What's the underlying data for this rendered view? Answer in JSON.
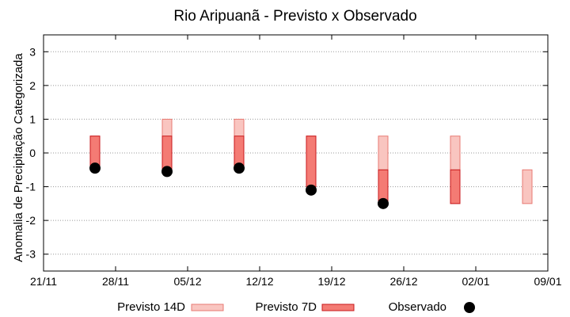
{
  "chart_data": {
    "type": "bar",
    "title": "Rio Aripuanã - Previsto x Observado",
    "ylabel": "Anomalia de Precipitação Categorizada",
    "xlabel": "",
    "ylim": [
      -3.5,
      3.5
    ],
    "y_ticks": [
      -3,
      -2,
      -1,
      0,
      1,
      2,
      3
    ],
    "x_ticks": [
      "21/11",
      "28/11",
      "05/12",
      "12/12",
      "19/12",
      "26/12",
      "02/01",
      "09/01"
    ],
    "grid": true,
    "legend_position": "bottom",
    "colors": {
      "forecast14_fill": "#f9c5c0",
      "forecast14_stroke": "#e87a73",
      "forecast7_fill": "#f47b74",
      "forecast7_stroke": "#c8191c",
      "observed": "#000000",
      "grid": "#999999"
    },
    "legend": {
      "forecast14": "Previsto 14D",
      "forecast7": "Previsto 7D",
      "observed": "Observado"
    },
    "series": [
      {
        "name": "Previsto 14D",
        "kind": "range",
        "ranges": [
          {
            "x": "26/11",
            "low": -0.5,
            "high": 0.5
          },
          {
            "x": "03/12",
            "low": -0.5,
            "high": 1.0
          },
          {
            "x": "10/12",
            "low": -0.5,
            "high": 1.0
          },
          {
            "x": "17/12",
            "low": -1.0,
            "high": 0.5
          },
          {
            "x": "24/12",
            "low": -1.5,
            "high": 0.5
          },
          {
            "x": "31/12",
            "low": -1.5,
            "high": 0.5
          },
          {
            "x": "07/01",
            "low": -1.5,
            "high": -0.5
          }
        ]
      },
      {
        "name": "Previsto 7D",
        "kind": "range",
        "ranges": [
          {
            "x": "26/11",
            "low": -0.5,
            "high": 0.5
          },
          {
            "x": "03/12",
            "low": -0.5,
            "high": 0.5
          },
          {
            "x": "10/12",
            "low": -0.5,
            "high": 0.5
          },
          {
            "x": "17/12",
            "low": -1.0,
            "high": 0.5
          },
          {
            "x": "24/12",
            "low": -1.5,
            "high": -0.5
          },
          {
            "x": "31/12",
            "low": -1.5,
            "high": -0.5
          }
        ]
      },
      {
        "name": "Observado",
        "kind": "point",
        "points": [
          {
            "x": "26/11",
            "y": -0.45
          },
          {
            "x": "03/12",
            "y": -0.55
          },
          {
            "x": "10/12",
            "y": -0.45
          },
          {
            "x": "17/12",
            "y": -1.1
          },
          {
            "x": "24/12",
            "y": -1.5
          }
        ]
      }
    ]
  }
}
